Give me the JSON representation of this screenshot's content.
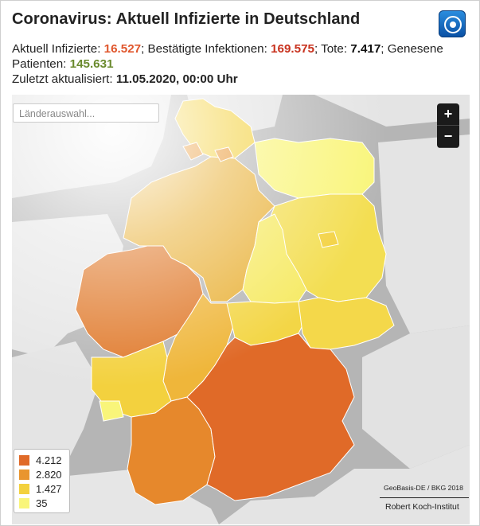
{
  "header": {
    "title": "Coronavirus: Aktuell Infizierte in Deutschland",
    "logo": "tagesschau-logo-icon"
  },
  "stats": {
    "active_label": "Aktuell Infizierte: ",
    "active_value": "16.527",
    "confirmed_label": "; Bestätigte Infektionen: ",
    "confirmed_value": "169.575",
    "deaths_label": "; Tote: ",
    "deaths_value": "7.417",
    "recovered_label": "; Genesene Patienten: ",
    "recovered_value": "145.631",
    "updated_label": "Zuletzt aktualisiert: ",
    "updated_value": "11.05.2020, 00:00 Uhr"
  },
  "search": {
    "placeholder": "Länderauswahl..."
  },
  "zoom": {
    "in_label": "+",
    "out_label": "−"
  },
  "legend": {
    "items": [
      {
        "label": "4.212",
        "color": "#e06a28"
      },
      {
        "label": "2.820",
        "color": "#e9952e"
      },
      {
        "label": "1.427",
        "color": "#f3d13e"
      },
      {
        "label": "35",
        "color": "#f9f57a"
      }
    ]
  },
  "credits": {
    "geodata": "GeoBasis-DE / BKG 2018",
    "source": "Robert Koch-Institut"
  },
  "colors": {
    "land": "#ebebeb",
    "water": "#b5b5b5",
    "level_high": "#e06a28",
    "level_midhigh": "#e9952e",
    "level_mid": "#f3d13e",
    "level_low": "#f9f57a"
  }
}
